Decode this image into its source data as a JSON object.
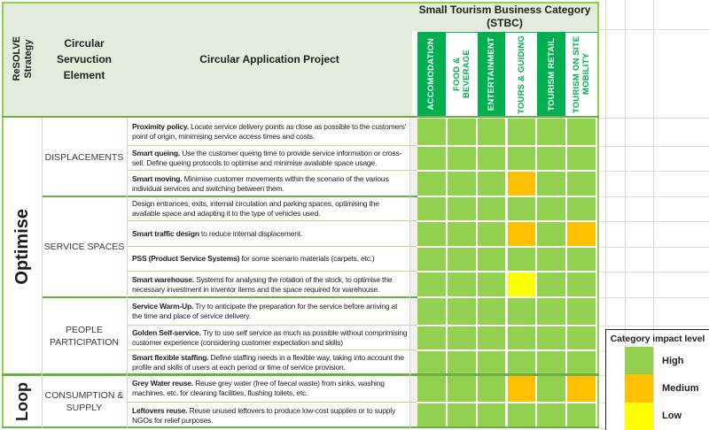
{
  "title": {
    "line1": "Small Tourism Business Category",
    "line2": "(STBC)"
  },
  "headers": {
    "strategy": "ReSOLVE\nStrategy",
    "servuction": "Circular Servuction Element",
    "application": "Circular Application Project"
  },
  "categories": [
    "ACCOMODATION",
    "FOOD & BEVERAGE",
    "ENTERTAINMENT",
    "TOURS & GUIDING",
    "TOURISM RETAIL",
    "TOURISM ON SITE MOBILITY"
  ],
  "strategies": [
    {
      "label": "Optimise"
    },
    {
      "label": "Loop"
    }
  ],
  "groups": [
    {
      "label": "DISPLACEMENTS"
    },
    {
      "label": "SERVICE SPACES"
    },
    {
      "label": "PEOPLE PARTICIPATION"
    },
    {
      "label": "CONSUMPTION & SUPPLY"
    }
  ],
  "projects": [
    {
      "lead": "Proximity policy.",
      "rest": " Locate service delivery points as close as possible to the customers' point of origin, minimising service access times and costs.",
      "impacts": [
        "High",
        "High",
        "High",
        "High",
        "High",
        "High"
      ]
    },
    {
      "lead": "Smart queing.",
      "rest": " Use the customer queing time to provide service information or cross-sell. Define queing protocols to optimise and minimise available space usage.",
      "impacts": [
        "High",
        "High",
        "High",
        "High",
        "High",
        "High"
      ]
    },
    {
      "lead": "Smart moving.",
      "rest": " Minimise customer movements within the scenario of the various individual services and switching between them.",
      "impacts": [
        "High",
        "High",
        "High",
        "Medium",
        "High",
        "High"
      ]
    },
    {
      "lead": "",
      "rest": "Design entrances, exits, internal circulation and parking spaces, optimising the available space and adapting it to the type of vehicles used.",
      "impacts": [
        "High",
        "High",
        "High",
        "High",
        "High",
        "High"
      ]
    },
    {
      "lead": "Smart traffic design",
      "rest": " to reduce internal displacement.",
      "impacts": [
        "High",
        "High",
        "High",
        "Medium",
        "High",
        "Medium"
      ]
    },
    {
      "lead": "PSS (Product Service Systems)",
      "rest": " for some scenario materials (carpets, etc.)",
      "impacts": [
        "High",
        "High",
        "High",
        "High",
        "High",
        "High"
      ]
    },
    {
      "lead": "Smart warehouse.",
      "rest": " Systems for analysing the rotation of the stock, to optimise the necessary investment in inventor items and the space required for warehouse.",
      "impacts": [
        "High",
        "High",
        "High",
        "Low",
        "High",
        "High"
      ]
    },
    {
      "lead": "Service Warm-Up.",
      "rest": " Try to anticipate the preparation for the service before arriving at the time and place of service delivery.",
      "impacts": [
        "High",
        "High",
        "High",
        "High",
        "High",
        "High"
      ]
    },
    {
      "lead": "Golden Self-service.",
      "rest": " Try to use self service as much as possible without comprimising customer experience (considering customer expectation and skills)",
      "impacts": [
        "High",
        "High",
        "High",
        "High",
        "High",
        "High"
      ]
    },
    {
      "lead": "Smart flexible staffing.",
      "rest": " Define staffing needs in a flexible way, taking into account the profile and skills of users at each period or time of service provision.",
      "impacts": [
        "High",
        "High",
        "High",
        "High",
        "High",
        "High"
      ]
    },
    {
      "lead": "Grey Water reuse.",
      "rest": " Reuse grey water (free of faecal waste) from sinks, washing machines, etc. for cleaning facilities, flushing toilets, etc.",
      "impacts": [
        "High",
        "High",
        "High",
        "Medium",
        "High",
        "Medium"
      ]
    },
    {
      "lead": "Leftovers reuse.",
      "rest": " Reuse unused leftovers to produce low-cost supplies or to supply NGOs for relief purposes.",
      "impacts": [
        "High",
        "High",
        "High",
        "High",
        "High",
        "High"
      ]
    }
  ],
  "legend": {
    "title": "Category impact level",
    "items": [
      {
        "label": "High",
        "color": "#92d050"
      },
      {
        "label": "Medium",
        "color": "#ffc000"
      },
      {
        "label": "Low",
        "color": "#ffff00"
      }
    ]
  },
  "colors": {
    "header_band_green": "#00b050",
    "header_light_green": "#e3ecda",
    "cell_high": "#92d050",
    "cell_medium": "#ffc000",
    "cell_low": "#ffff00",
    "section_border": "#6fae44",
    "thin_row_line": "#b9d99e"
  }
}
